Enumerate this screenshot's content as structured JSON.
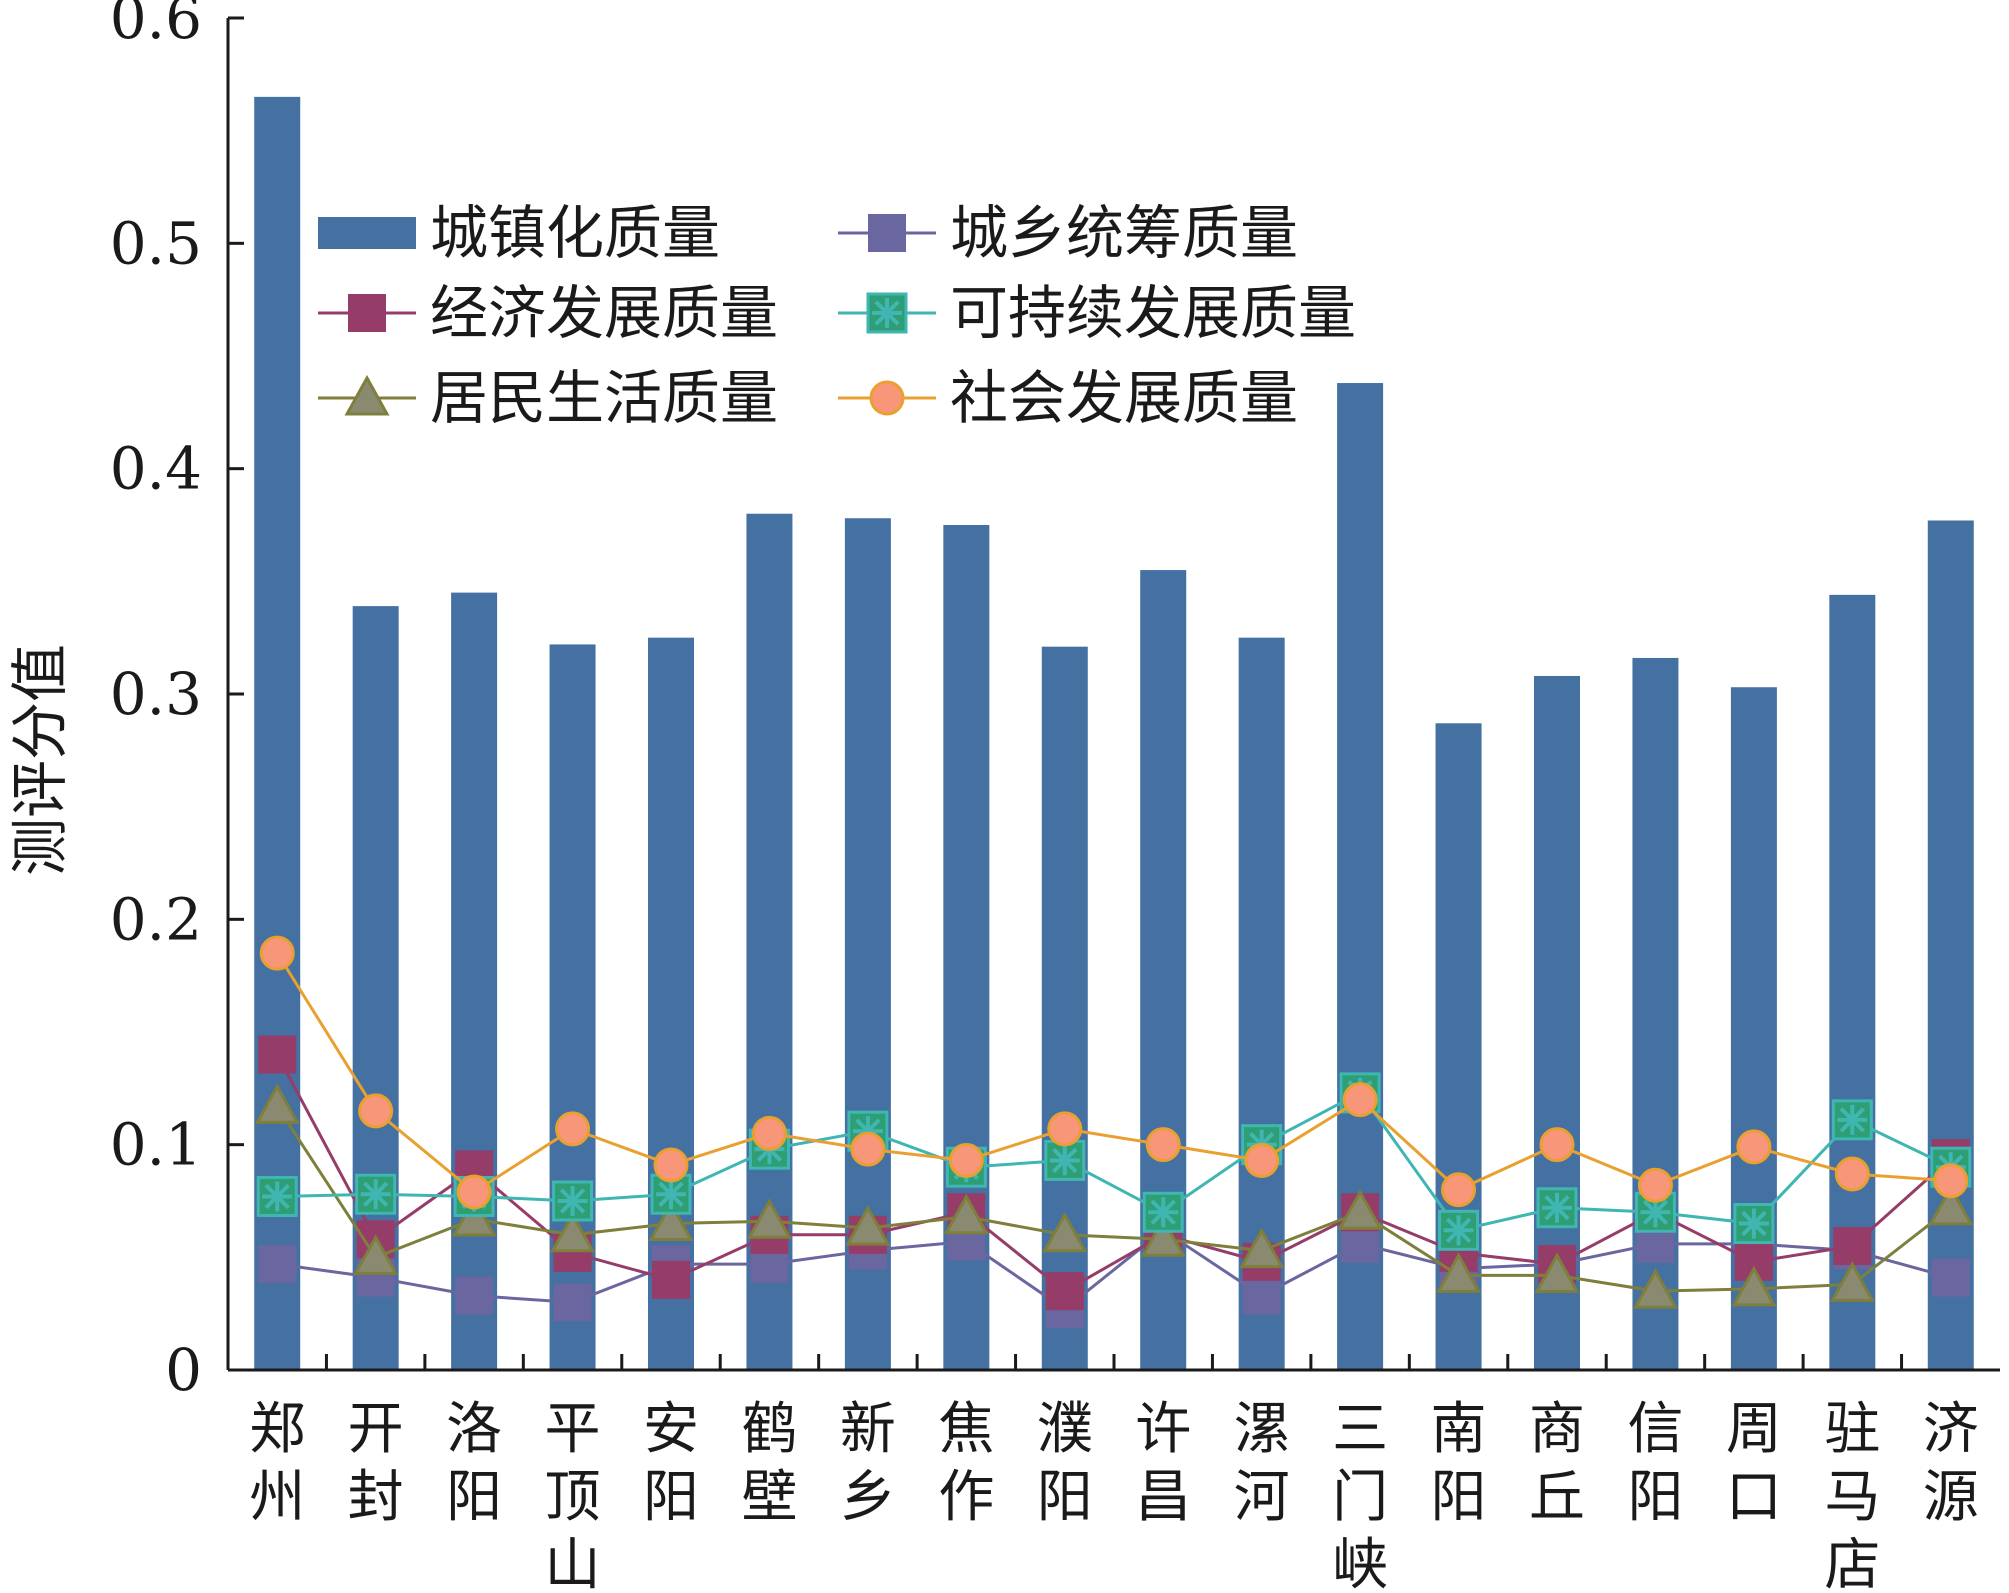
{
  "chart_data": {
    "type": "bar",
    "ylabel": "测评分值",
    "ylim": [
      0,
      0.6
    ],
    "yticks": [
      "0",
      "0.1",
      "0.2",
      "0.3",
      "0.4",
      "0.5",
      "0.6"
    ],
    "grid": false,
    "legend_position": "top-left",
    "categories": [
      "郑州",
      "开封",
      "洛阳",
      "平顶山",
      "安阳",
      "鹤壁",
      "新乡",
      "焦作",
      "濮阳",
      "许昌",
      "漯河",
      "三门峡",
      "南阳",
      "商丘",
      "信阳",
      "周口",
      "驻马店",
      "济源"
    ],
    "series": [
      {
        "name": "城镇化质量",
        "kind": "bar",
        "color": "#4470a2",
        "marker": "bar",
        "values": [
          0.565,
          0.339,
          0.345,
          0.322,
          0.325,
          0.38,
          0.378,
          0.375,
          0.321,
          0.355,
          0.325,
          0.438,
          0.287,
          0.308,
          0.316,
          0.303,
          0.344,
          0.377
        ]
      },
      {
        "name": "城乡统筹质量",
        "kind": "line",
        "color": "#6a66a0",
        "marker": "square",
        "values": [
          0.047,
          0.041,
          0.033,
          0.03,
          0.047,
          0.047,
          0.053,
          0.057,
          0.027,
          0.062,
          0.033,
          0.056,
          0.045,
          0.047,
          0.056,
          0.056,
          0.053,
          0.041
        ]
      },
      {
        "name": "经济发展质量",
        "kind": "line",
        "color": "#963c68",
        "marker": "square",
        "values": [
          0.14,
          0.058,
          0.089,
          0.052,
          0.04,
          0.06,
          0.06,
          0.07,
          0.035,
          0.06,
          0.048,
          0.07,
          0.052,
          0.047,
          0.07,
          0.048,
          0.055,
          0.094
        ]
      },
      {
        "name": "可持续发展质量",
        "kind": "line",
        "color": "#3fb6b2",
        "marker": "asterisk-square",
        "values": [
          0.077,
          0.078,
          0.077,
          0.075,
          0.078,
          0.098,
          0.106,
          0.09,
          0.093,
          0.07,
          0.1,
          0.123,
          0.062,
          0.072,
          0.07,
          0.065,
          0.111,
          0.09
        ]
      },
      {
        "name": "居民生活质量",
        "kind": "line",
        "color": "#7f7f3c",
        "marker": "triangle",
        "values": [
          0.117,
          0.05,
          0.067,
          0.06,
          0.065,
          0.066,
          0.063,
          0.068,
          0.06,
          0.058,
          0.053,
          0.07,
          0.042,
          0.042,
          0.035,
          0.036,
          0.038,
          0.072
        ]
      },
      {
        "name": "社会发展质量",
        "kind": "line",
        "color": "#e9a030",
        "marker": "circle",
        "values": [
          0.185,
          0.115,
          0.079,
          0.107,
          0.091,
          0.105,
          0.098,
          0.093,
          0.107,
          0.1,
          0.093,
          0.12,
          0.08,
          0.1,
          0.082,
          0.099,
          0.087,
          0.084
        ]
      }
    ],
    "marker_fill": {
      "square_lilac": "#6a66a0",
      "triangle": "#8a8a70",
      "circle": "#f79679",
      "asterisk_box": "#2f9e74"
    }
  }
}
